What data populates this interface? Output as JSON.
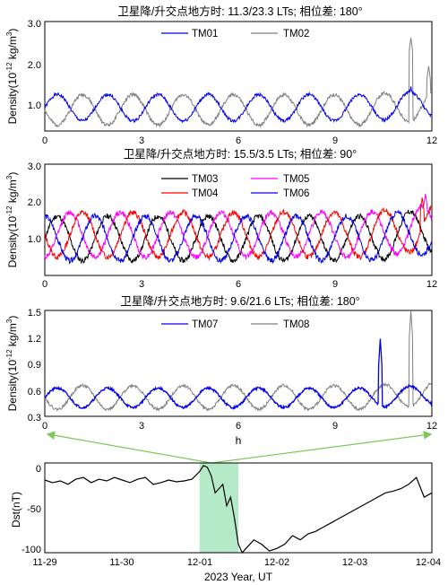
{
  "chart_data": [
    {
      "type": "line",
      "title": "卫星降/升交点地方时: 11.3/23.3 LTs; 相位差: 180°",
      "ylabel": "Density(10^-12 kg/m^3)",
      "xlim": [
        0,
        12
      ],
      "ylim": [
        0.3,
        3.0
      ],
      "xticks": [
        "0",
        "3",
        "6",
        "9",
        "12"
      ],
      "yticks": [
        "1.0",
        "2.0",
        "3.0"
      ],
      "legend_position": "top",
      "series": [
        {
          "name": "TM01",
          "color": "#0000ee",
          "period_h": 1.56,
          "phase": 0.0,
          "min": 0.55,
          "max": 1.2,
          "spikes": [
            {
              "x": 11.35,
              "value": 1.4
            }
          ]
        },
        {
          "name": "TM02",
          "color": "#808080",
          "period_h": 1.56,
          "phase": 0.78,
          "min": 0.45,
          "max": 1.2,
          "spikes": [
            {
              "x": 11.35,
              "value": 2.6
            },
            {
              "x": 11.9,
              "value": 1.9
            }
          ]
        }
      ]
    },
    {
      "type": "line",
      "title": "卫星降/升交点地方时: 15.5/3.5 LTs; 相位差: 90°",
      "ylabel": "Density(10^-12 kg/m^3)",
      "xlim": [
        0,
        12
      ],
      "ylim": [
        0.0,
        3.0
      ],
      "xticks": [
        "0",
        "3",
        "6",
        "9",
        "12"
      ],
      "yticks": [
        "1.0",
        "2.0",
        "3.0"
      ],
      "legend_position": "top",
      "series": [
        {
          "name": "TM03",
          "color": "#000000",
          "period_h": 1.56,
          "phase": 0.0,
          "min": 0.4,
          "max": 1.6,
          "spikes": []
        },
        {
          "name": "TM05",
          "color": "#ff00ff",
          "period_h": 1.56,
          "phase": 0.39,
          "min": 0.5,
          "max": 1.7,
          "spikes": [
            {
              "x": 11.8,
              "value": 2.2
            }
          ]
        },
        {
          "name": "TM04",
          "color": "#ff0000",
          "period_h": 1.56,
          "phase": 0.78,
          "min": 0.5,
          "max": 1.7,
          "spikes": [
            {
              "x": 11.7,
              "value": 2.1
            }
          ]
        },
        {
          "name": "TM06",
          "color": "#0000ee",
          "period_h": 1.56,
          "phase": 1.17,
          "min": 0.4,
          "max": 1.6,
          "spikes": []
        }
      ]
    },
    {
      "type": "line",
      "title": "卫星降/升交点地方时: 9.6/21.6 LTs; 相位差: 180°",
      "ylabel": "Density(10^-12 kg/m^3)",
      "xlabel": "h",
      "xlim": [
        0,
        12
      ],
      "ylim": [
        0.3,
        1.5
      ],
      "xticks": [
        "0",
        "3",
        "6",
        "9",
        "12"
      ],
      "yticks": [
        "0.3",
        "0.6",
        "0.9",
        "1.2",
        "1.5"
      ],
      "legend_position": "top",
      "series": [
        {
          "name": "TM07",
          "color": "#0000ee",
          "period_h": 1.56,
          "phase": 0.0,
          "min": 0.4,
          "max": 0.62,
          "spikes": [
            {
              "x": 10.4,
              "value": 1.18
            }
          ]
        },
        {
          "name": "TM08",
          "color": "#808080",
          "period_h": 1.56,
          "phase": 0.78,
          "min": 0.38,
          "max": 0.65,
          "spikes": [
            {
              "x": 11.35,
              "value": 1.5
            }
          ]
        }
      ]
    },
    {
      "type": "line",
      "ylabel": "Dst(nT)",
      "xlabel": "2023 Year, UT",
      "xlim": [
        "11-29",
        "12-04"
      ],
      "ylim": [
        -100,
        5
      ],
      "xticks": [
        "11-29",
        "11-30",
        "12-01",
        "12-02",
        "12-03",
        "12-04"
      ],
      "yticks": [
        "0",
        "-50",
        "-100"
      ],
      "highlight": {
        "from": 2.0,
        "to": 2.5,
        "color": "#a8e6c0"
      },
      "series": [
        {
          "name": "Dst",
          "color": "#000000",
          "x": [
            0,
            0.1,
            0.2,
            0.3,
            0.4,
            0.5,
            0.6,
            0.7,
            0.8,
            0.9,
            1.0,
            1.1,
            1.2,
            1.3,
            1.4,
            1.5,
            1.6,
            1.7,
            1.8,
            1.9,
            2.0,
            2.05,
            2.1,
            2.15,
            2.2,
            2.25,
            2.3,
            2.35,
            2.4,
            2.45,
            2.5,
            2.55,
            2.6,
            2.7,
            2.8,
            2.9,
            3.0,
            3.1,
            3.2,
            3.3,
            3.4,
            3.5,
            3.6,
            3.7,
            3.8,
            3.9,
            4.0,
            4.1,
            4.2,
            4.3,
            4.4,
            4.5,
            4.6,
            4.7,
            4.8,
            4.9,
            5.0
          ],
          "y": [
            -15,
            -18,
            -16,
            -20,
            -14,
            -12,
            -18,
            -14,
            -16,
            -12,
            -15,
            -18,
            -14,
            -12,
            -20,
            -18,
            -15,
            -17,
            -16,
            -14,
            -5,
            2,
            0,
            -10,
            -30,
            -25,
            -20,
            -45,
            -35,
            -60,
            -90,
            -100,
            -95,
            -85,
            -90,
            -98,
            -95,
            -90,
            -80,
            -85,
            -78,
            -75,
            -70,
            -65,
            -60,
            -55,
            -50,
            -45,
            -40,
            -35,
            -30,
            -28,
            -25,
            -20,
            -12,
            -35,
            -30
          ]
        }
      ]
    }
  ]
}
